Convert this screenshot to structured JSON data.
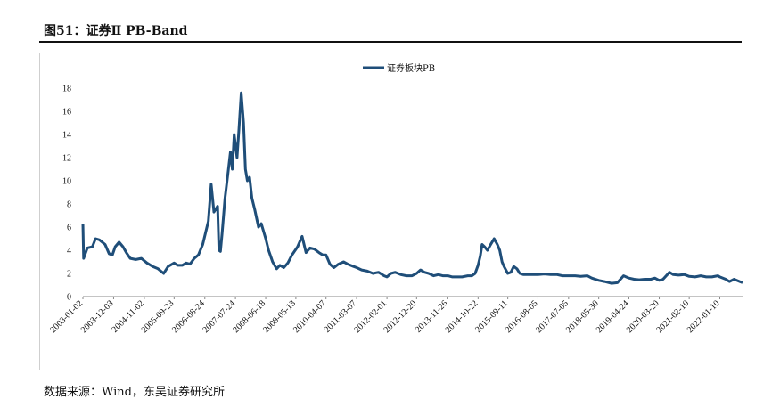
{
  "figure": {
    "title": "图51：证券Ⅱ  PB-Band",
    "source": "数据来源：Wind，东吴证券研究所"
  },
  "chart_data": {
    "type": "line",
    "series": [
      {
        "name": "证券板块PB",
        "color": "#1f4e79",
        "points": [
          [
            "2003-01-02",
            6.3
          ],
          [
            "2003-01-10",
            3.3
          ],
          [
            "2003-02-20",
            4.2
          ],
          [
            "2003-04-15",
            4.3
          ],
          [
            "2003-05-20",
            5.0
          ],
          [
            "2003-07-01",
            4.9
          ],
          [
            "2003-09-01",
            4.5
          ],
          [
            "2003-10-15",
            3.7
          ],
          [
            "2003-11-20",
            3.6
          ],
          [
            "2003-12-20",
            4.3
          ],
          [
            "2004-02-01",
            4.7
          ],
          [
            "2004-03-15",
            4.3
          ],
          [
            "2004-04-20",
            3.8
          ],
          [
            "2004-06-01",
            3.3
          ],
          [
            "2004-08-01",
            3.2
          ],
          [
            "2004-10-01",
            3.3
          ],
          [
            "2004-12-01",
            2.9
          ],
          [
            "2005-02-01",
            2.6
          ],
          [
            "2005-04-01",
            2.4
          ],
          [
            "2005-06-01",
            2.0
          ],
          [
            "2005-07-20",
            2.6
          ],
          [
            "2005-09-23",
            2.9
          ],
          [
            "2005-11-01",
            2.7
          ],
          [
            "2005-12-20",
            2.7
          ],
          [
            "2006-02-01",
            2.9
          ],
          [
            "2006-03-15",
            2.8
          ],
          [
            "2006-05-01",
            3.3
          ],
          [
            "2006-06-15",
            3.6
          ],
          [
            "2006-08-01",
            4.5
          ],
          [
            "2006-10-01",
            6.5
          ],
          [
            "2006-11-01",
            9.7
          ],
          [
            "2006-12-01",
            7.3
          ],
          [
            "2007-01-10",
            7.8
          ],
          [
            "2007-01-25",
            4.0
          ],
          [
            "2007-02-10",
            3.9
          ],
          [
            "2007-03-01",
            5.5
          ],
          [
            "2007-04-01",
            8.5
          ],
          [
            "2007-05-01",
            10.5
          ],
          [
            "2007-05-30",
            12.5
          ],
          [
            "2007-06-20",
            11.0
          ],
          [
            "2007-07-10",
            14.0
          ],
          [
            "2007-08-10",
            12.0
          ],
          [
            "2007-09-01",
            14.5
          ],
          [
            "2007-09-25",
            17.6
          ],
          [
            "2007-10-20",
            15.0
          ],
          [
            "2007-11-10",
            11.0
          ],
          [
            "2007-12-01",
            10.0
          ],
          [
            "2007-12-25",
            10.3
          ],
          [
            "2008-01-20",
            8.5
          ],
          [
            "2008-02-20",
            7.5
          ],
          [
            "2008-04-01",
            6.0
          ],
          [
            "2008-05-01",
            6.3
          ],
          [
            "2008-06-18",
            5.0
          ],
          [
            "2008-07-20",
            4.0
          ],
          [
            "2008-09-01",
            3.0
          ],
          [
            "2008-10-15",
            2.4
          ],
          [
            "2008-11-20",
            2.7
          ],
          [
            "2009-01-01",
            2.5
          ],
          [
            "2009-02-15",
            2.9
          ],
          [
            "2009-04-01",
            3.6
          ],
          [
            "2009-06-01",
            4.3
          ],
          [
            "2009-07-20",
            5.2
          ],
          [
            "2009-09-01",
            3.8
          ],
          [
            "2009-10-15",
            4.2
          ],
          [
            "2009-12-01",
            4.1
          ],
          [
            "2010-01-20",
            3.8
          ],
          [
            "2010-03-01",
            3.6
          ],
          [
            "2010-04-07",
            3.6
          ],
          [
            "2010-05-20",
            2.8
          ],
          [
            "2010-07-01",
            2.5
          ],
          [
            "2010-08-20",
            2.8
          ],
          [
            "2010-10-15",
            3.0
          ],
          [
            "2010-12-01",
            2.8
          ],
          [
            "2011-02-01",
            2.6
          ],
          [
            "2011-03-07",
            2.5
          ],
          [
            "2011-05-01",
            2.3
          ],
          [
            "2011-07-01",
            2.2
          ],
          [
            "2011-09-01",
            2.0
          ],
          [
            "2011-11-01",
            2.1
          ],
          [
            "2012-01-01",
            1.8
          ],
          [
            "2012-02-01",
            1.7
          ],
          [
            "2012-03-15",
            2.0
          ],
          [
            "2012-05-01",
            2.1
          ],
          [
            "2012-07-01",
            1.9
          ],
          [
            "2012-09-01",
            1.8
          ],
          [
            "2012-11-01",
            1.8
          ],
          [
            "2012-12-20",
            2.0
          ],
          [
            "2013-02-01",
            2.3
          ],
          [
            "2013-03-15",
            2.1
          ],
          [
            "2013-05-01",
            2.0
          ],
          [
            "2013-06-25",
            1.8
          ],
          [
            "2013-08-15",
            1.9
          ],
          [
            "2013-10-01",
            1.8
          ],
          [
            "2013-11-26",
            1.8
          ],
          [
            "2014-01-15",
            1.7
          ],
          [
            "2014-03-01",
            1.7
          ],
          [
            "2014-05-01",
            1.7
          ],
          [
            "2014-07-01",
            1.8
          ],
          [
            "2014-08-15",
            1.8
          ],
          [
            "2014-09-20",
            2.0
          ],
          [
            "2014-10-22",
            2.7
          ],
          [
            "2014-11-15",
            3.5
          ],
          [
            "2014-12-05",
            4.5
          ],
          [
            "2015-01-01",
            4.3
          ],
          [
            "2015-02-01",
            4.0
          ],
          [
            "2015-03-01",
            4.4
          ],
          [
            "2015-04-15",
            5.0
          ],
          [
            "2015-05-20",
            4.5
          ],
          [
            "2015-06-15",
            4.0
          ],
          [
            "2015-07-10",
            3.0
          ],
          [
            "2015-08-01",
            2.6
          ],
          [
            "2015-09-11",
            2.0
          ],
          [
            "2015-10-15",
            2.1
          ],
          [
            "2015-11-15",
            2.6
          ],
          [
            "2015-12-20",
            2.4
          ],
          [
            "2016-01-20",
            2.0
          ],
          [
            "2016-03-01",
            1.9
          ],
          [
            "2016-05-01",
            1.9
          ],
          [
            "2016-08-05",
            1.9
          ],
          [
            "2016-10-15",
            1.95
          ],
          [
            "2016-12-20",
            1.9
          ],
          [
            "2017-03-01",
            1.9
          ],
          [
            "2017-05-01",
            1.8
          ],
          [
            "2017-07-05",
            1.8
          ],
          [
            "2017-09-15",
            1.8
          ],
          [
            "2017-11-15",
            1.75
          ],
          [
            "2018-01-25",
            1.8
          ],
          [
            "2018-03-15",
            1.6
          ],
          [
            "2018-05-30",
            1.4
          ],
          [
            "2018-08-01",
            1.3
          ],
          [
            "2018-10-15",
            1.15
          ],
          [
            "2018-12-20",
            1.2
          ],
          [
            "2019-02-25",
            1.8
          ],
          [
            "2019-04-24",
            1.6
          ],
          [
            "2019-06-20",
            1.5
          ],
          [
            "2019-08-15",
            1.45
          ],
          [
            "2019-10-15",
            1.5
          ],
          [
            "2019-12-20",
            1.5
          ],
          [
            "2020-02-01",
            1.6
          ],
          [
            "2020-03-20",
            1.4
          ],
          [
            "2020-05-01",
            1.5
          ],
          [
            "2020-07-10",
            2.1
          ],
          [
            "2020-08-20",
            1.9
          ],
          [
            "2020-10-15",
            1.85
          ],
          [
            "2020-12-20",
            1.9
          ],
          [
            "2021-02-10",
            1.75
          ],
          [
            "2021-04-15",
            1.7
          ],
          [
            "2021-06-15",
            1.8
          ],
          [
            "2021-08-15",
            1.7
          ],
          [
            "2021-10-15",
            1.7
          ],
          [
            "2021-12-20",
            1.8
          ],
          [
            "2022-01-10",
            1.7
          ],
          [
            "2022-03-15",
            1.5
          ],
          [
            "2022-04-25",
            1.3
          ],
          [
            "2022-06-15",
            1.5
          ],
          [
            "2022-08-15",
            1.3
          ],
          [
            "2022-09-15",
            1.2
          ]
        ]
      }
    ],
    "ylim": [
      0,
      18
    ],
    "yticks": [
      0,
      2,
      4,
      6,
      8,
      10,
      12,
      14,
      16,
      18
    ],
    "xticks": [
      "2003-01-02",
      "2003-12-03",
      "2004-11-02",
      "2005-09-23",
      "2006-08-24",
      "2007-07-24",
      "2008-06-18",
      "2009-05-13",
      "2010-04-07",
      "2011-03-07",
      "2012-02-01",
      "2012-12-20",
      "2013-11-26",
      "2014-10-22",
      "2015-09-11",
      "2016-08-05",
      "2017-07-05",
      "2018-05-30",
      "2019-04-24",
      "2020-03-20",
      "2021-02-10",
      "2022-01-10"
    ],
    "xlim": [
      "2003-01-02",
      "2022-09-15"
    ],
    "legend": "top-center",
    "grid": false
  }
}
